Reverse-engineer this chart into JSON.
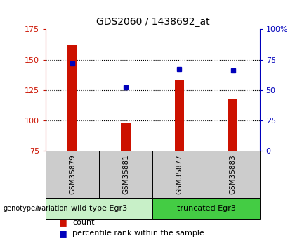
{
  "title": "GDS2060 / 1438692_at",
  "samples": [
    "GSM35879",
    "GSM35881",
    "GSM35877",
    "GSM35883"
  ],
  "counts": [
    162,
    98,
    133,
    117
  ],
  "percentiles": [
    72,
    52,
    67,
    66
  ],
  "groups": [
    {
      "label": "wild type Egr3",
      "samples": [
        0,
        1
      ],
      "color": "#b8f0b8"
    },
    {
      "label": "truncated Egr3",
      "samples": [
        2,
        3
      ],
      "color": "#44dd44"
    }
  ],
  "ylim_left": [
    75,
    175
  ],
  "ylim_right": [
    0,
    100
  ],
  "yticks_left": [
    75,
    100,
    125,
    150,
    175
  ],
  "yticks_right": [
    0,
    25,
    50,
    75,
    100
  ],
  "ytick_labels_right": [
    "0",
    "25",
    "50",
    "75",
    "100%"
  ],
  "bar_color": "#cc1100",
  "square_color": "#0000bb",
  "bar_width": 0.18,
  "grid_color": "#000000",
  "background_color": "#ffffff",
  "label_color_left": "#cc1100",
  "label_color_right": "#0000bb",
  "genotype_label": "genotype/variation",
  "legend_count": "count",
  "legend_percentile": "percentile rank within the sample",
  "sample_cell_color": "#cccccc",
  "group1_color": "#c8f0c8",
  "group2_color": "#44cc44"
}
